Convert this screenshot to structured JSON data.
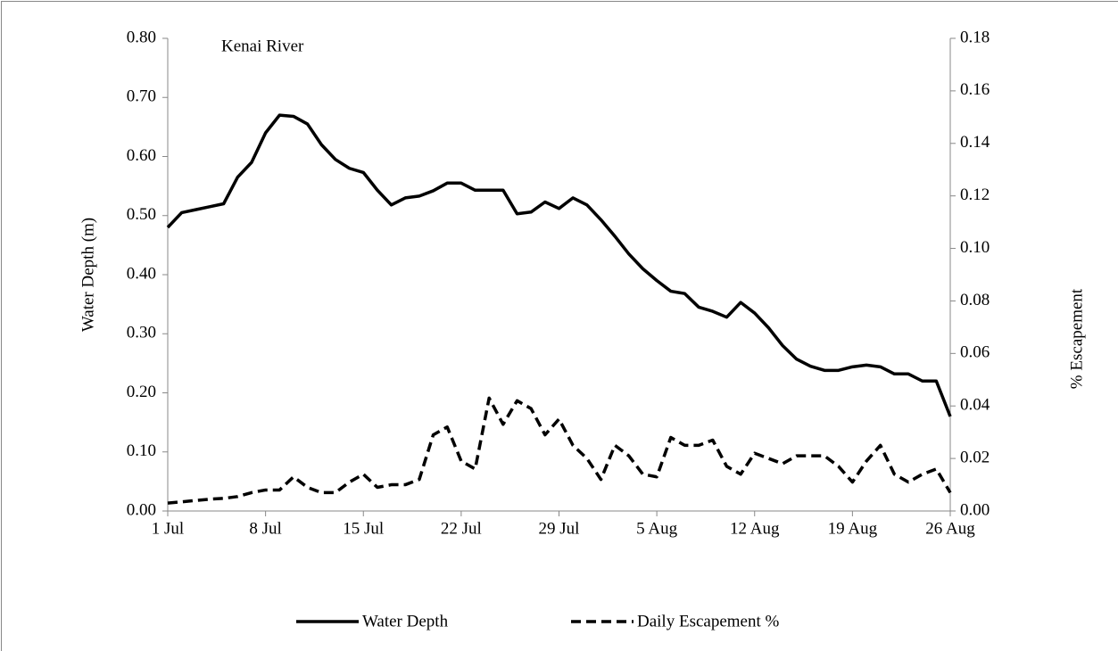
{
  "chart_data": {
    "type": "line",
    "annotation": "Kenai River",
    "y_label": "Water Depth (m)",
    "y2_label": "% Escapement",
    "categories": [
      "1 Jul",
      null,
      null,
      null,
      null,
      null,
      null,
      "8 Jul",
      null,
      null,
      null,
      null,
      null,
      null,
      "15 Jul",
      null,
      null,
      null,
      null,
      null,
      null,
      "22 Jul",
      null,
      null,
      null,
      null,
      null,
      null,
      "29 Jul",
      null,
      null,
      null,
      null,
      null,
      null,
      "5 Aug",
      null,
      null,
      null,
      null,
      null,
      null,
      "12 Aug",
      null,
      null,
      null,
      null,
      null,
      null,
      "19 Aug",
      null,
      null,
      null,
      null,
      null,
      null,
      "26 Aug"
    ],
    "series": [
      {
        "name": "Water Depth",
        "color": "#000000",
        "line_style": "solid",
        "axis": "y",
        "values": [
          0.48,
          0.505,
          0.51,
          0.515,
          0.52,
          0.565,
          0.59,
          0.64,
          0.67,
          0.668,
          0.655,
          0.62,
          0.595,
          0.58,
          0.573,
          0.543,
          0.518,
          0.53,
          0.533,
          0.542,
          0.555,
          0.555,
          0.543,
          0.543,
          0.543,
          0.503,
          0.506,
          0.523,
          0.512,
          0.53,
          0.518,
          0.493,
          0.465,
          0.435,
          0.41,
          0.39,
          0.372,
          0.368,
          0.345,
          0.338,
          0.328,
          0.353,
          0.335,
          0.31,
          0.28,
          0.257,
          0.245,
          0.238,
          0.238,
          0.244,
          0.247,
          0.244,
          0.232,
          0.232,
          0.22,
          0.22,
          0.16
        ]
      },
      {
        "name": "Daily Escapement %",
        "color": "#000000",
        "line_style": "dashed",
        "axis": "y2",
        "values": [
          0.003,
          0.0035,
          0.004,
          0.0045,
          0.0048,
          0.0055,
          0.007,
          0.008,
          0.008,
          0.013,
          0.009,
          0.007,
          0.007,
          0.011,
          0.014,
          0.009,
          0.01,
          0.01,
          0.012,
          0.029,
          0.032,
          0.019,
          0.016,
          0.043,
          0.033,
          0.042,
          0.039,
          0.029,
          0.035,
          0.025,
          0.02,
          0.012,
          0.025,
          0.021,
          0.014,
          0.013,
          0.028,
          0.025,
          0.025,
          0.027,
          0.017,
          0.014,
          0.022,
          0.02,
          0.018,
          0.021,
          0.021,
          0.021,
          0.017,
          0.011,
          0.019,
          0.025,
          0.014,
          0.011,
          0.014,
          0.016,
          0.007
        ]
      }
    ],
    "ylim": [
      0,
      0.8
    ],
    "yticks": [
      {
        "value": 0,
        "label": "0.00"
      },
      {
        "value": 0.1,
        "label": "0.10"
      },
      {
        "value": 0.2,
        "label": "0.20"
      },
      {
        "value": 0.3,
        "label": "0.30"
      },
      {
        "value": 0.4,
        "label": "0.40"
      },
      {
        "value": 0.5,
        "label": "0.50"
      },
      {
        "value": 0.6,
        "label": "0.60"
      },
      {
        "value": 0.7,
        "label": "0.70"
      },
      {
        "value": 0.8,
        "label": "0.80"
      }
    ],
    "y2lim": [
      0,
      0.18
    ],
    "y2ticks": [
      {
        "value": 0,
        "label": "0.00"
      },
      {
        "value": 0.02,
        "label": "0.02"
      },
      {
        "value": 0.04,
        "label": "0.04"
      },
      {
        "value": 0.06,
        "label": "0.06"
      },
      {
        "value": 0.08,
        "label": "0.08"
      },
      {
        "value": 0.1,
        "label": "0.10"
      },
      {
        "value": 0.12,
        "label": "0.12"
      },
      {
        "value": 0.14,
        "label": "0.14"
      },
      {
        "value": 0.16,
        "label": "0.16"
      },
      {
        "value": 0.18,
        "label": "0.18"
      }
    ],
    "grid": false,
    "legend": "bottom"
  }
}
